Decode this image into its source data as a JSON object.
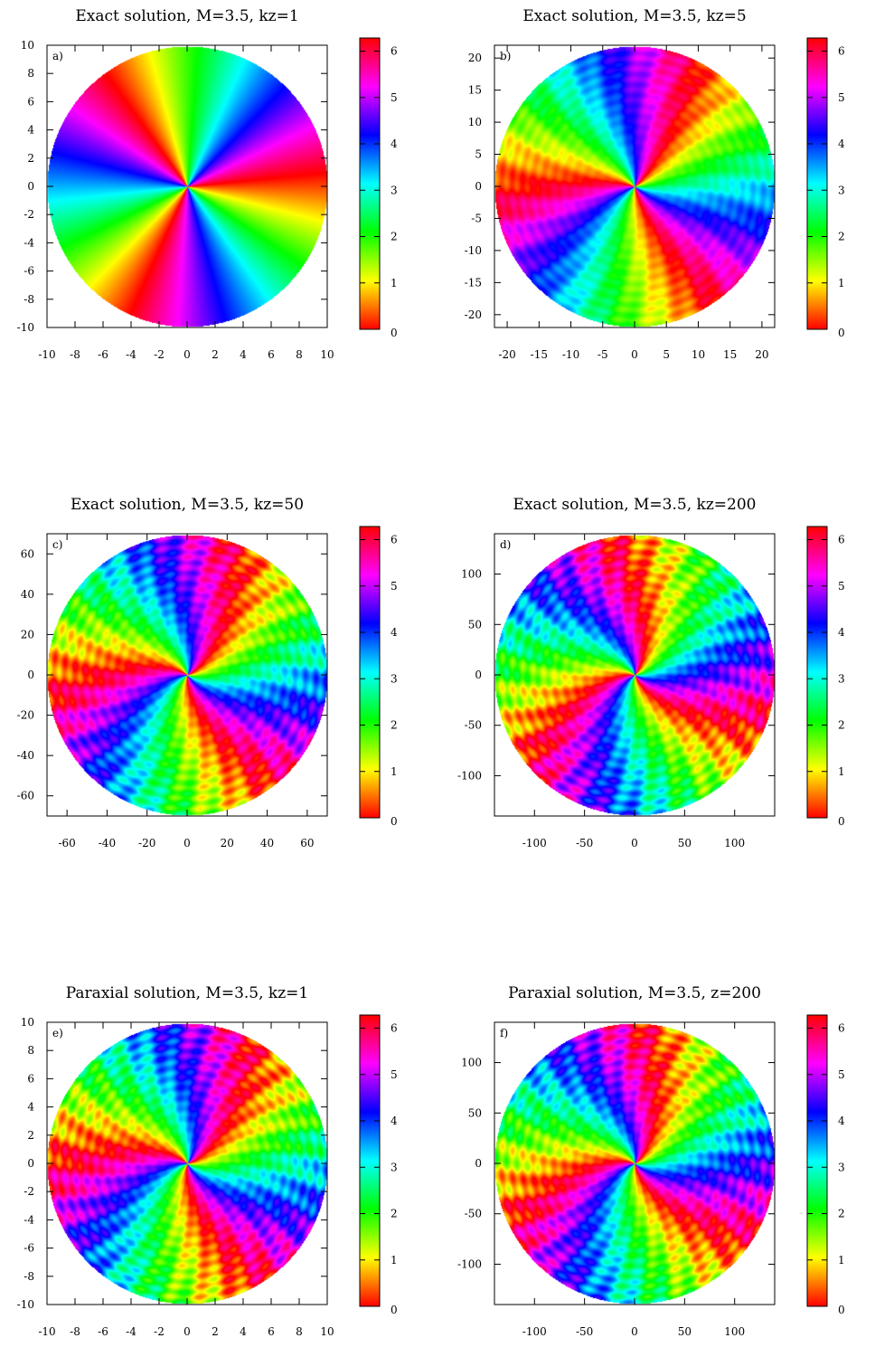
{
  "figure": {
    "colorbar": {
      "ticks": [
        "0",
        "1",
        "2",
        "3",
        "4",
        "5",
        "6"
      ],
      "range": [
        0,
        6.283
      ],
      "colors": [
        "#ff0000",
        "#ffff00",
        "#00ff00",
        "#00ffff",
        "#0000ff",
        "#ff00ff",
        "#ff0000"
      ]
    }
  },
  "chart_data": [
    {
      "type": "heatmap",
      "panel_label": "a)",
      "title": "Exact solution, M=3.5, kz=1",
      "xlim": [
        -10,
        10
      ],
      "ylim": [
        -10,
        10
      ],
      "xticks": [
        "-10",
        "-8",
        "-6",
        "-4",
        "-2",
        "0",
        "2",
        "4",
        "6",
        "8",
        "10"
      ],
      "yticks": [
        "-10",
        "-8",
        "-6",
        "-4",
        "-2",
        "0",
        "2",
        "4",
        "6",
        "8",
        "10"
      ],
      "colorbar_ticks": [
        "0",
        "1",
        "2",
        "3",
        "4",
        "5",
        "6"
      ],
      "topological_charge": -3,
      "ripple": 0,
      "twist": 0,
      "rotation": 0.3
    },
    {
      "type": "heatmap",
      "panel_label": "b)",
      "title": "Exact solution, M=3.5, kz=5",
      "xlim": [
        -22,
        22
      ],
      "ylim": [
        -22,
        22
      ],
      "xticks": [
        "-20",
        "-15",
        "-10",
        "-5",
        "0",
        "5",
        "10",
        "15",
        "20"
      ],
      "yticks": [
        "-20",
        "-15",
        "-10",
        "-5",
        "0",
        "5",
        "10",
        "15",
        "20"
      ],
      "colorbar_ticks": [
        "0",
        "1",
        "2",
        "3",
        "4",
        "5",
        "6"
      ],
      "topological_charge": -3,
      "ripple": 0.25,
      "twist": 0.6,
      "rotation": 2.1
    },
    {
      "type": "heatmap",
      "panel_label": "c)",
      "title": "Exact solution, M=3.5, kz=50",
      "xlim": [
        -70,
        70
      ],
      "ylim": [
        -70,
        70
      ],
      "xticks": [
        "-60",
        "-40",
        "-20",
        "0",
        "20",
        "40",
        "60"
      ],
      "yticks": [
        "-60",
        "-40",
        "-20",
        "0",
        "20",
        "40",
        "60"
      ],
      "colorbar_ticks": [
        "0",
        "1",
        "2",
        "3",
        "4",
        "5",
        "6"
      ],
      "topological_charge": -3,
      "ripple": 0.45,
      "twist": 1.2,
      "rotation": 1.2
    },
    {
      "type": "heatmap",
      "panel_label": "d)",
      "title": "Exact solution, M=3.5, kz=200",
      "xlim": [
        -140,
        140
      ],
      "ylim": [
        -140,
        140
      ],
      "xticks": [
        "-100",
        "-50",
        "0",
        "50",
        "100"
      ],
      "yticks": [
        "-100",
        "-50",
        "0",
        "50",
        "100"
      ],
      "colorbar_ticks": [
        "0",
        "1",
        "2",
        "3",
        "4",
        "5",
        "6"
      ],
      "topological_charge": -3,
      "ripple": 0.5,
      "twist": 1.3,
      "rotation": 2.6
    },
    {
      "type": "heatmap",
      "panel_label": "e)",
      "title": "Paraxial solution, M=3.5, kz=1",
      "xlim": [
        -10,
        10
      ],
      "ylim": [
        -10,
        10
      ],
      "xticks": [
        "-10",
        "-8",
        "-6",
        "-4",
        "-2",
        "0",
        "2",
        "4",
        "6",
        "8",
        "10"
      ],
      "yticks": [
        "-10",
        "-8",
        "-6",
        "-4",
        "-2",
        "0",
        "2",
        "4",
        "6",
        "8",
        "10"
      ],
      "colorbar_ticks": [
        "0",
        "1",
        "2",
        "3",
        "4",
        "5",
        "6"
      ],
      "topological_charge": -3,
      "ripple": 0.5,
      "twist": 1.2,
      "rotation": 0.8
    },
    {
      "type": "heatmap",
      "panel_label": "f)",
      "title": "Paraxial solution, M=3.5, z=200",
      "xlim": [
        -140,
        140
      ],
      "ylim": [
        -140,
        140
      ],
      "xticks": [
        "-100",
        "-50",
        "0",
        "50",
        "100"
      ],
      "yticks": [
        "-100",
        "-50",
        "0",
        "50",
        "100"
      ],
      "colorbar_ticks": [
        "0",
        "1",
        "2",
        "3",
        "4",
        "5",
        "6"
      ],
      "topological_charge": -3,
      "ripple": 0.5,
      "twist": 1.3,
      "rotation": 1.9
    }
  ]
}
